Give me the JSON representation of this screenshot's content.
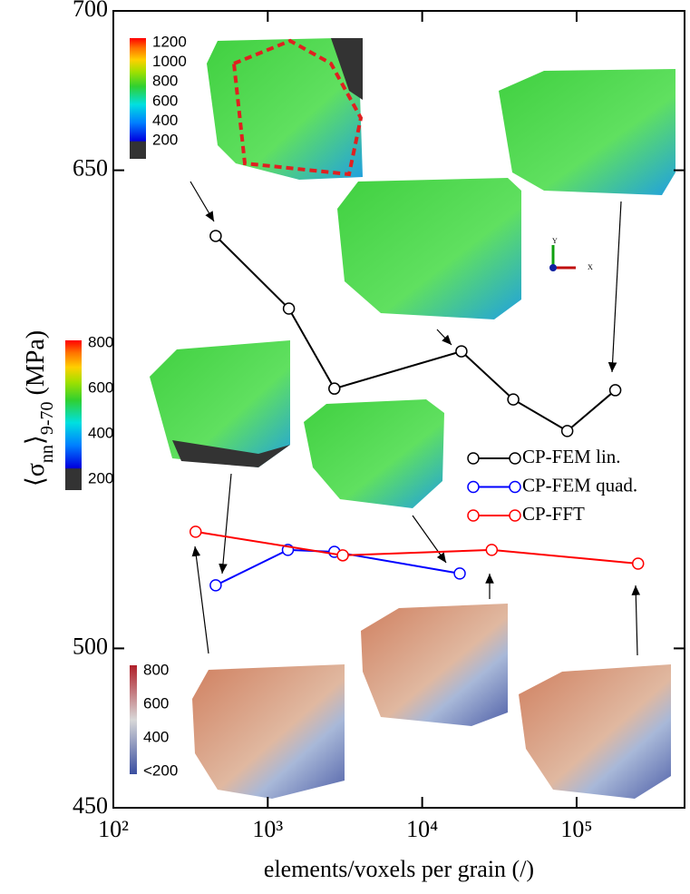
{
  "chart_data": {
    "type": "line",
    "xlabel": "elements/voxels per grain (/)",
    "ylabel": [
      "⟨σ",
      "nn",
      "⟩",
      "9-70",
      " (MPa)"
    ],
    "xscale": "log",
    "xlim": [
      100,
      500000
    ],
    "xticks": [
      {
        "value": 100,
        "label": "10²"
      },
      {
        "value": 1000,
        "label": "10³"
      },
      {
        "value": 10000,
        "label": "10⁴"
      },
      {
        "value": 100000,
        "label": "10⁵"
      }
    ],
    "ylim": [
      450,
      700
    ],
    "yticks": [
      450,
      500,
      650,
      700
    ],
    "series": [
      {
        "name": "CP-FEM lin.",
        "color": "#000000",
        "x": [
          460,
          1370,
          2700,
          17950,
          38900,
          87000,
          178000
        ],
        "values": [
          629.4,
          606.6,
          581.5,
          593.2,
          578.1,
          568.2,
          581
        ]
      },
      {
        "name": "CP-FEM quad.",
        "color": "#0000ff",
        "x": [
          460,
          1350,
          2700,
          17500
        ],
        "values": [
          519.8,
          530.9,
          530.3,
          523.5
        ]
      },
      {
        "name": "CP-FFT",
        "color": "#ff0000",
        "x": [
          341,
          3060,
          28200,
          250000
        ],
        "values": [
          536.6,
          529.2,
          530.9,
          526.6
        ]
      }
    ],
    "colorbars": [
      {
        "labels": [
          1200,
          1000,
          800,
          600,
          400,
          200
        ]
      },
      {
        "labels": [
          800,
          600,
          400,
          200
        ]
      },
      {
        "labels": [
          800,
          600,
          400,
          {
            "value": 200,
            "label": "<200"
          }
        ]
      }
    ],
    "triad": [
      "Y",
      "X"
    ]
  }
}
